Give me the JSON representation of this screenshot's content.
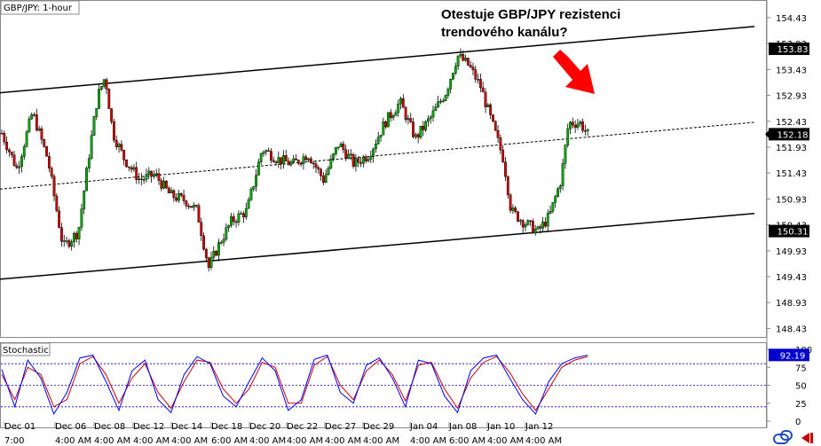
{
  "chart_data": {
    "type": "candlestick",
    "title": "GBP/JPY: 1-hour",
    "annotation": "Otestuje GBP/JPY rezistenci\ntrendového kanálu?",
    "y_ticks": [
      "154.43",
      "153.93",
      "153.43",
      "152.93",
      "152.43",
      "151.93",
      "151.43",
      "150.93",
      "150.43",
      "149.93",
      "149.43",
      "148.93",
      "148.43"
    ],
    "ylim": [
      148.3,
      154.6
    ],
    "price_badges": [
      {
        "label": "153.83",
        "value": 153.83,
        "color": "#000000"
      },
      {
        "label": "152.18",
        "value": 152.18,
        "color": "#000000"
      },
      {
        "label": "150.31",
        "value": 150.31,
        "color": "#000000"
      }
    ],
    "channel": {
      "upper": [
        [
          0,
          152.98
        ],
        [
          1.0,
          154.28
        ]
      ],
      "middle": [
        [
          0,
          151.12
        ],
        [
          1.0,
          152.43
        ]
      ],
      "lower": [
        [
          0,
          149.38
        ],
        [
          1.0,
          150.67
        ]
      ]
    },
    "price_path": [
      [
        0.0,
        152.2
      ],
      [
        0.02,
        151.5
      ],
      [
        0.04,
        152.6
      ],
      [
        0.06,
        151.7
      ],
      [
        0.08,
        150.0
      ],
      [
        0.1,
        150.3
      ],
      [
        0.115,
        151.9
      ],
      [
        0.125,
        152.9
      ],
      [
        0.135,
        153.3
      ],
      [
        0.145,
        152.2
      ],
      [
        0.16,
        151.7
      ],
      [
        0.18,
        151.3
      ],
      [
        0.2,
        151.4
      ],
      [
        0.22,
        151.0
      ],
      [
        0.24,
        150.9
      ],
      [
        0.255,
        150.7
      ],
      [
        0.27,
        149.6
      ],
      [
        0.285,
        150.1
      ],
      [
        0.3,
        150.5
      ],
      [
        0.32,
        150.7
      ],
      [
        0.34,
        151.9
      ],
      [
        0.36,
        151.7
      ],
      [
        0.38,
        151.6
      ],
      [
        0.4,
        151.8
      ],
      [
        0.42,
        151.3
      ],
      [
        0.44,
        152.0
      ],
      [
        0.46,
        151.6
      ],
      [
        0.48,
        151.8
      ],
      [
        0.5,
        152.4
      ],
      [
        0.52,
        152.8
      ],
      [
        0.54,
        152.1
      ],
      [
        0.56,
        152.5
      ],
      [
        0.58,
        153.0
      ],
      [
        0.595,
        153.7
      ],
      [
        0.61,
        153.5
      ],
      [
        0.625,
        153.1
      ],
      [
        0.64,
        152.4
      ],
      [
        0.655,
        151.7
      ],
      [
        0.665,
        150.7
      ],
      [
        0.68,
        150.5
      ],
      [
        0.7,
        150.3
      ],
      [
        0.715,
        150.6
      ],
      [
        0.73,
        151.3
      ],
      [
        0.74,
        152.4
      ],
      [
        0.755,
        152.4
      ],
      [
        0.765,
        152.18
      ]
    ],
    "stochastic": {
      "label": "Stochastic",
      "ticks": [
        "100",
        "75",
        "50",
        "25",
        "0"
      ],
      "levels": [
        80,
        50,
        20
      ],
      "value_label": "92.19",
      "k": [
        72,
        20,
        85,
        60,
        10,
        40,
        88,
        92,
        55,
        15,
        70,
        85,
        30,
        12,
        65,
        90,
        80,
        35,
        20,
        55,
        88,
        70,
        15,
        30,
        86,
        92,
        40,
        25,
        78,
        88,
        60,
        20,
        85,
        80,
        35,
        12,
        70,
        88,
        92,
        60,
        30,
        10,
        55,
        80,
        88,
        92
      ],
      "d": [
        65,
        30,
        75,
        65,
        20,
        30,
        80,
        90,
        65,
        25,
        60,
        80,
        40,
        18,
        55,
        85,
        82,
        45,
        25,
        45,
        82,
        75,
        25,
        25,
        78,
        90,
        50,
        30,
        70,
        85,
        65,
        28,
        78,
        82,
        45,
        18,
        60,
        82,
        90,
        68,
        38,
        15,
        45,
        75,
        85,
        90
      ]
    },
    "x_labels": [
      "Dec 01",
      "Dec 06",
      "Dec 08",
      "Dec 12",
      "Dec 14",
      "Dec 18",
      "Dec 20",
      "Dec 22",
      "Dec 27",
      "Dec 29",
      "Jan 04",
      "Jan 08",
      "Jan 10",
      "Jan 12"
    ],
    "x_time_labels": [
      "7:00",
      "4:00 AM",
      "4:00 AM",
      "4:00 AM",
      "4:00 AM",
      "6:00 AM",
      "4:00 AM",
      "4:00 AM",
      "4:00 AM",
      "4:00 AM",
      "4:00 AM",
      "6:00 AM",
      "4:00 AM",
      "4:00 AM"
    ],
    "colors": {
      "up": "#00aa00",
      "down": "#cc0000",
      "badge": "#000000",
      "stoch_badge": "#0000cc",
      "arrow": "#ff0000",
      "k_line": "#0000ff",
      "d_line": "#cc0000"
    }
  }
}
